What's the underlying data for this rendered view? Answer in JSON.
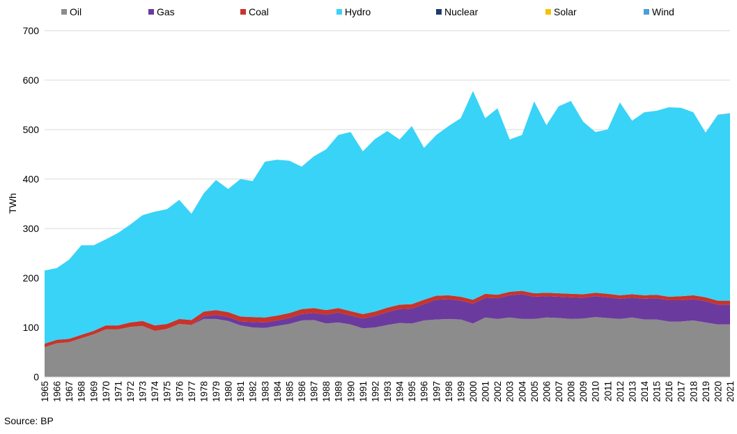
{
  "legend_colors": {
    "Oil": "#8c8c8c",
    "Gas": "#6b3a9e",
    "Coal": "#c8342a",
    "Hydro": "#38d3f7",
    "Nuclear": "#1f3b6e",
    "Solar": "#f5c200",
    "Wind": "#4a9fd9"
  },
  "chart_data": {
    "type": "area",
    "stacked": true,
    "ylabel": "TWh",
    "ylim": [
      0,
      700
    ],
    "yticks": [
      0,
      100,
      200,
      300,
      400,
      500,
      600,
      700
    ],
    "grid": true,
    "legend_position": "top",
    "x": [
      "1965",
      "1966",
      "1967",
      "1968",
      "1969",
      "1970",
      "1971",
      "1972",
      "1973",
      "1974",
      "1975",
      "1976",
      "1977",
      "1978",
      "1979",
      "1980",
      "1981",
      "1982",
      "1983",
      "1984",
      "1985",
      "1986",
      "1987",
      "1988",
      "1989",
      "1990",
      "1991",
      "1992",
      "1993",
      "1994",
      "1995",
      "1996",
      "1997",
      "1998",
      "1999",
      "2000",
      "2001",
      "2002",
      "2003",
      "2004",
      "2005",
      "2006",
      "2007",
      "2008",
      "2009",
      "2010",
      "2011",
      "2012",
      "2013",
      "2014",
      "2015",
      "2016",
      "2017",
      "2018",
      "2019",
      "2020",
      "2021"
    ],
    "series": [
      {
        "name": "Oil",
        "values": [
          60,
          68,
          70,
          78,
          86,
          96,
          96,
          101,
          103,
          93,
          97,
          107,
          105,
          117,
          117,
          113,
          104,
          100,
          99,
          103,
          107,
          114,
          115,
          108,
          110,
          106,
          98,
          100,
          105,
          109,
          108,
          114,
          116,
          117,
          116,
          108,
          120,
          117,
          120,
          117,
          117,
          120,
          119,
          117,
          118,
          121,
          119,
          117,
          120,
          116,
          116,
          112,
          112,
          114,
          110,
          106,
          106
        ]
      },
      {
        "name": "Gas",
        "values": [
          0,
          0,
          0,
          0,
          0,
          0,
          0,
          0,
          0,
          0,
          0,
          0,
          0,
          5,
          8,
          8,
          8,
          11,
          11,
          11,
          12,
          13,
          14,
          18,
          20,
          18,
          20,
          23,
          26,
          28,
          30,
          33,
          40,
          40,
          38,
          40,
          40,
          42,
          45,
          50,
          45,
          43,
          43,
          44,
          42,
          42,
          42,
          41,
          40,
          42,
          43,
          43,
          43,
          43,
          43,
          40,
          40
        ]
      },
      {
        "name": "Coal",
        "values": [
          7,
          7,
          7,
          7,
          7,
          8,
          8,
          9,
          10,
          11,
          10,
          10,
          10,
          10,
          10,
          10,
          10,
          10,
          10,
          10,
          10,
          10,
          10,
          9,
          9,
          9,
          9,
          9,
          9,
          9,
          9,
          9,
          8,
          8,
          8,
          8,
          8,
          7,
          7,
          7,
          7,
          7,
          7,
          7,
          7,
          7,
          7,
          7,
          7,
          7,
          7,
          7,
          8,
          8,
          8,
          8,
          8
        ]
      },
      {
        "name": "Hydro",
        "values": [
          148,
          145,
          160,
          181,
          173,
          174,
          187,
          198,
          214,
          230,
          232,
          241,
          215,
          239,
          263,
          249,
          278,
          275,
          315,
          315,
          308,
          288,
          307,
          325,
          350,
          362,
          329,
          349,
          357,
          334,
          360,
          307,
          325,
          342,
          361,
          422,
          355,
          377,
          308,
          315,
          388,
          339,
          378,
          390,
          349,
          325,
          332,
          390,
          351,
          370,
          372,
          383,
          381,
          370,
          333,
          375,
          378
        ]
      },
      {
        "name": "Nuclear",
        "values": [
          0,
          0,
          0,
          0,
          0,
          0,
          0,
          0,
          0,
          0,
          0,
          0,
          0,
          0,
          0,
          0,
          0,
          0,
          0,
          0,
          0,
          0,
          0,
          0,
          0,
          0,
          0,
          0,
          0,
          0,
          0,
          0,
          0,
          0,
          0,
          0,
          0,
          0,
          0,
          0,
          0,
          0,
          0,
          0,
          0,
          0,
          0,
          0,
          0,
          0,
          0,
          0,
          0,
          0,
          0,
          0,
          0
        ]
      },
      {
        "name": "Solar",
        "values": [
          0,
          0,
          0,
          0,
          0,
          0,
          0,
          0,
          0,
          0,
          0,
          0,
          0,
          0,
          0,
          0,
          0,
          0,
          0,
          0,
          0,
          0,
          0,
          0,
          0,
          0,
          0,
          0,
          0,
          0,
          0,
          0,
          0,
          0,
          0,
          0,
          0,
          0,
          0,
          0,
          0,
          0,
          0,
          0,
          0,
          0,
          0,
          0,
          0,
          0,
          0,
          0,
          0,
          0,
          0,
          0,
          0
        ]
      },
      {
        "name": "Wind",
        "values": [
          0,
          0,
          0,
          0,
          0,
          0,
          0,
          0,
          0,
          0,
          0,
          0,
          0,
          0,
          0,
          0,
          0,
          0,
          0,
          0,
          0,
          0,
          0,
          0,
          0,
          0,
          0,
          0,
          0,
          0,
          0,
          0,
          0,
          0,
          0,
          0,
          0,
          0,
          0,
          0,
          0,
          0,
          0,
          0,
          0,
          0,
          0,
          0,
          0,
          0,
          0,
          0,
          0,
          0,
          0,
          1,
          1
        ]
      }
    ]
  },
  "source": "Source: BP"
}
